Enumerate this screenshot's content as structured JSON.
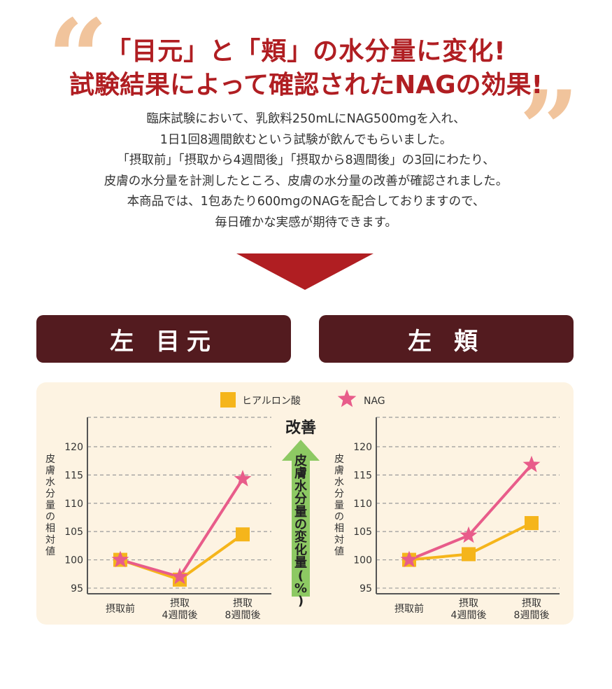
{
  "headline": {
    "line1": "「目元」と「頬」の水分量に変化!",
    "line2": "試験結果によって確認されたNAGの効果!"
  },
  "body_lines": [
    "臨床試験において、乳飲料250mLにNAG500mgを入れ、",
    "1日1回8週間飲むという試験が飲んでもらいました。",
    "「摂取前」「摂取から4週間後」「摂取から8週間後」の3回にわたり、",
    "皮膚の水分量を計測したところ、皮膚の水分量の改善が確認されました。",
    "本商品では、1包あたり600mgのNAGを配合しておりますので、",
    "毎日確かな実感が期待できます。"
  ],
  "labels": {
    "left": "左 目元",
    "right": "左 頬"
  },
  "colors": {
    "dark_red": "#531b1f",
    "headline_red": "#b01e22",
    "hyaluronic": "#f5b51b",
    "nag": "#e85c8a",
    "arrow_green": "#8dc963",
    "panel_bg": "#fdf3e2"
  },
  "legend": {
    "hyaluronic": "ヒアルロン酸",
    "nag": "NAG"
  },
  "center_arrow": {
    "top_label": "改善",
    "vertical_label": "皮膚水分量の変化量(%)"
  },
  "chart_data": [
    {
      "type": "line",
      "ylabel": "皮膚水分量の相対値",
      "ylim": [
        94,
        122
      ],
      "yticks": [
        95,
        100,
        105,
        110,
        115,
        120
      ],
      "categories": [
        [
          "摂取前"
        ],
        [
          "摂取",
          "4週間後"
        ],
        [
          "摂取",
          "8週間後"
        ]
      ],
      "series": [
        {
          "name": "ヒアルロン酸",
          "marker": "square",
          "values": [
            100,
            96.5,
            104.5
          ]
        },
        {
          "name": "NAG",
          "marker": "star",
          "values": [
            100,
            97,
            114.3
          ]
        }
      ]
    },
    {
      "type": "line",
      "ylabel": "皮膚水分量の相対値",
      "ylim": [
        94,
        122
      ],
      "yticks": [
        95,
        100,
        105,
        110,
        115,
        120
      ],
      "categories": [
        [
          "摂取前"
        ],
        [
          "摂取",
          "4週間後"
        ],
        [
          "摂取",
          "8週間後"
        ]
      ],
      "series": [
        {
          "name": "ヒアルロン酸",
          "marker": "square",
          "values": [
            100,
            101,
            106.5
          ]
        },
        {
          "name": "NAG",
          "marker": "star",
          "values": [
            100,
            104.3,
            116.8
          ]
        }
      ]
    }
  ]
}
